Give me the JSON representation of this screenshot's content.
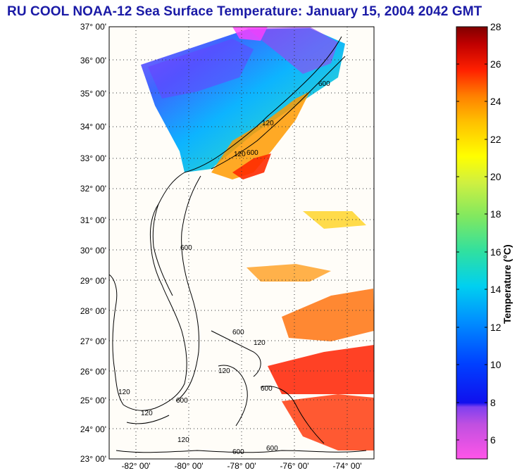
{
  "title": "RU COOL  NOAA-12  Sea Surface Temperature:  January 15, 2004 2042 GMT",
  "map": {
    "lat_labels": [
      "37° 00'",
      "36° 00'",
      "35° 00'",
      "34° 00'",
      "33° 00'",
      "32° 00'",
      "31° 00'",
      "30° 00'",
      "29° 00'",
      "28° 00'",
      "27° 00'",
      "26° 00'",
      "25° 00'",
      "24° 00'",
      "23° 00'"
    ],
    "lon_labels": [
      "-82° 00'",
      "-80° 00'",
      "-78° 00'",
      "-76° 00'",
      "-74° 00'"
    ],
    "lat_range": [
      23,
      37
    ],
    "lon_range": [
      -83.25,
      -72.75
    ],
    "contour_labels": [
      "600",
      "120",
      "600",
      "120",
      "600",
      "600",
      "120",
      "120",
      "600",
      "600",
      "120",
      "600",
      "120",
      "600",
      "120"
    ],
    "colors": {
      "frame": "#000000",
      "background": "#fffdf8",
      "grid": "#333333"
    }
  },
  "colorbar": {
    "ticks": [
      "28",
      "26",
      "24",
      "22",
      "20",
      "18",
      "16",
      "14",
      "12",
      "10",
      "8",
      "6"
    ],
    "label": "Temperature (°C)",
    "range": [
      5,
      28
    ],
    "stops": [
      "#ff55e8",
      "#b050e0",
      "#6a3cff",
      "#1010ee",
      "#0060ff",
      "#00b8ff",
      "#00e0d8",
      "#40e080",
      "#b8f040",
      "#ffff00",
      "#ffc000",
      "#ff8000",
      "#ff2000",
      "#d00000",
      "#800000"
    ]
  }
}
